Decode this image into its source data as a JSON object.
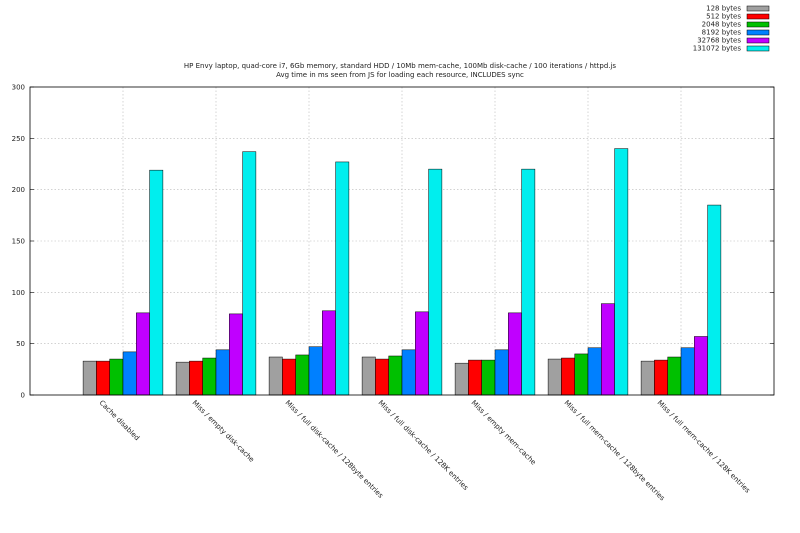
{
  "chart_data": {
    "type": "bar",
    "title": "HP Envy laptop, quad-core i7, 6Gb memory, standard HDD / 10Mb mem-cache, 100Mb disk-cache / 100 iterations / httpd.js",
    "subtitle": "Avg time in ms seen from JS for loading each resource, INCLUDES sync",
    "xlabel": "",
    "ylabel": "",
    "ylim": [
      0,
      300
    ],
    "yticks": [
      "0",
      "50",
      "100",
      "150",
      "200",
      "250",
      "300"
    ],
    "grid": true,
    "legend_position": "top-right",
    "categories": [
      "Cache disabled",
      "Miss / empty disk-cache",
      "Miss / full disk-cache / 128byte entries",
      "Miss / full disk-cache / 128K entries",
      "Miss / empty mem-cache",
      "Miss / full mem-cache / 128byte entries",
      "Miss / full mem-cache / 128K entries"
    ],
    "series": [
      {
        "name": "128 bytes",
        "color": "#a0a0a0",
        "values": [
          33,
          32,
          37,
          37,
          31,
          35,
          33
        ]
      },
      {
        "name": "512 bytes",
        "color": "#ff0000",
        "values": [
          33,
          33,
          35,
          35,
          34,
          36,
          34
        ]
      },
      {
        "name": "2048 bytes",
        "color": "#00c000",
        "values": [
          35,
          36,
          39,
          38,
          34,
          40,
          37
        ]
      },
      {
        "name": "8192 bytes",
        "color": "#0080ff",
        "values": [
          42,
          44,
          47,
          44,
          44,
          46,
          46
        ]
      },
      {
        "name": "32768 bytes",
        "color": "#c000ff",
        "values": [
          80,
          79,
          82,
          81,
          80,
          89,
          57
        ]
      },
      {
        "name": "131072 bytes",
        "color": "#00eeee",
        "values": [
          219,
          237,
          227,
          220,
          220,
          240,
          185
        ]
      }
    ]
  }
}
